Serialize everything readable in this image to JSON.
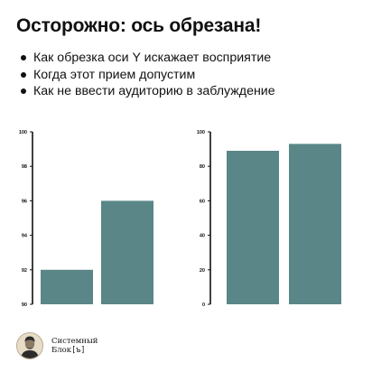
{
  "title": "Осторожно: ось обрезана!",
  "bullets": [
    "Как обрезка оси Y искажает восприятие",
    "Когда этот прием допустим",
    "Как не ввести аудиторию в заблуждение"
  ],
  "colors": {
    "bar": "#5a8687",
    "axis": "#111111"
  },
  "chart_data": [
    {
      "type": "bar",
      "title": "",
      "xlabel": "",
      "ylabel": "",
      "categories": [
        "",
        ""
      ],
      "values": [
        92,
        96
      ],
      "ylim": [
        90,
        100
      ],
      "yticks": [
        90,
        92,
        94,
        96,
        98,
        100
      ],
      "grid": false
    },
    {
      "type": "bar",
      "title": "",
      "xlabel": "",
      "ylabel": "",
      "categories": [
        "",
        ""
      ],
      "values": [
        89,
        93
      ],
      "ylim": [
        0,
        100
      ],
      "yticks": [
        0,
        20,
        40,
        60,
        80,
        100
      ],
      "grid": false
    }
  ],
  "footer": {
    "brand_line1": "Системный",
    "brand_line2_text": "Блок",
    "brand_line2_mark": "[ъ]",
    "avatar_icon": "portrait-avatar-icon"
  }
}
